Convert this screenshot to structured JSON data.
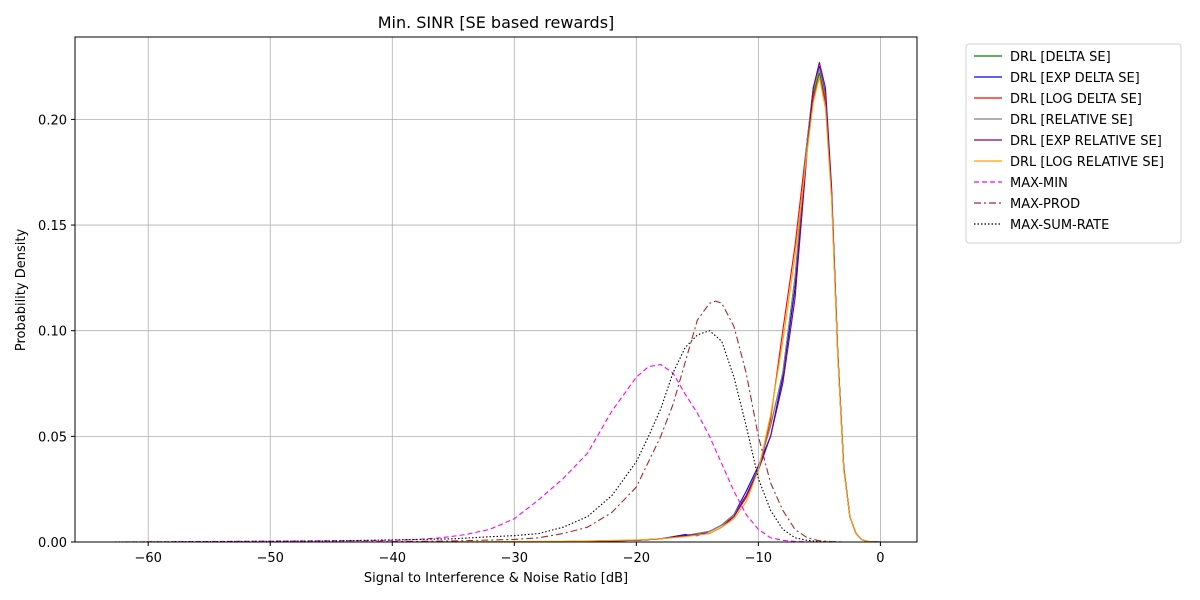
{
  "chart_data": {
    "type": "line",
    "title": "Min. SINR [SE based rewards]",
    "xlabel": "Signal to Interference & Noise Ratio [dB]",
    "ylabel": "Probability Density",
    "xlim": [
      -66,
      3
    ],
    "ylim": [
      0,
      0.239
    ],
    "xticks": [
      -60,
      -50,
      -40,
      -30,
      -20,
      -10,
      0
    ],
    "xtick_labels": [
      "−60",
      "−50",
      "−40",
      "−30",
      "−20",
      "−10",
      "0"
    ],
    "yticks": [
      0.0,
      0.05,
      0.1,
      0.15,
      0.2
    ],
    "ytick_labels": [
      "0.00",
      "0.05",
      "0.10",
      "0.15",
      "0.20"
    ],
    "grid": true,
    "legend_position": "outside-right-top",
    "series": [
      {
        "name": "DRL [DELTA SE]",
        "color": "#008000",
        "style": "solid",
        "x": [
          -40,
          -30,
          -25,
          -20,
          -18,
          -16,
          -14,
          -13,
          -12,
          -11,
          -10,
          -9,
          -8,
          -7,
          -6,
          -5.5,
          -5,
          -4.5,
          -4,
          -3.5,
          -3,
          -2.5,
          -2,
          -1.5,
          -1,
          0
        ],
        "y": [
          0,
          0,
          0.0003,
          0.0008,
          0.0015,
          0.003,
          0.005,
          0.008,
          0.013,
          0.022,
          0.035,
          0.055,
          0.08,
          0.125,
          0.19,
          0.212,
          0.222,
          0.21,
          0.165,
          0.09,
          0.035,
          0.012,
          0.004,
          0.001,
          0.0002,
          0
        ]
      },
      {
        "name": "DRL [EXP DELTA SE]",
        "color": "#0000ff",
        "style": "solid",
        "x": [
          -40,
          -30,
          -25,
          -20,
          -18,
          -16,
          -15,
          -14,
          -13,
          -12,
          -11,
          -10,
          -9,
          -8,
          -7,
          -6,
          -5.5,
          -5,
          -4.5,
          -4,
          -3.5,
          -3,
          -2.5,
          -2,
          -1.5,
          -1,
          0
        ],
        "y": [
          0,
          0,
          0.0003,
          0.0008,
          0.0015,
          0.0035,
          0.003,
          0.005,
          0.008,
          0.013,
          0.024,
          0.036,
          0.05,
          0.078,
          0.12,
          0.19,
          0.215,
          0.225,
          0.212,
          0.165,
          0.09,
          0.035,
          0.012,
          0.004,
          0.001,
          0.0002,
          0
        ]
      },
      {
        "name": "DRL [LOG DELTA SE]",
        "color": "#ff0000",
        "style": "solid",
        "x": [
          -40,
          -30,
          -25,
          -20,
          -18,
          -16,
          -14,
          -13,
          -12,
          -11,
          -10,
          -9,
          -8,
          -7,
          -6,
          -5.5,
          -5,
          -4.5,
          -4,
          -3.5,
          -3,
          -2.5,
          -2,
          -1.5,
          -1,
          0
        ],
        "y": [
          0,
          0,
          0.0003,
          0.0008,
          0.0015,
          0.003,
          0.005,
          0.008,
          0.012,
          0.021,
          0.034,
          0.058,
          0.1,
          0.14,
          0.19,
          0.21,
          0.22,
          0.208,
          0.165,
          0.09,
          0.035,
          0.012,
          0.004,
          0.001,
          0.0002,
          0
        ]
      },
      {
        "name": "DRL [RELATIVE SE]",
        "color": "#808080",
        "style": "solid",
        "x": [
          -40,
          -30,
          -25,
          -20,
          -18,
          -16,
          -14,
          -13,
          -12,
          -11,
          -10,
          -9,
          -8,
          -7,
          -6,
          -5.5,
          -5,
          -4.5,
          -4,
          -3.5,
          -3,
          -2.5,
          -2,
          -1.5,
          -1,
          0
        ],
        "y": [
          0,
          0,
          0.0003,
          0.0008,
          0.0015,
          0.003,
          0.005,
          0.008,
          0.013,
          0.022,
          0.035,
          0.055,
          0.08,
          0.125,
          0.19,
          0.214,
          0.224,
          0.211,
          0.165,
          0.09,
          0.035,
          0.012,
          0.004,
          0.001,
          0.0002,
          0
        ]
      },
      {
        "name": "DRL [EXP RELATIVE SE]",
        "color": "#800080",
        "style": "solid",
        "x": [
          -40,
          -30,
          -25,
          -20,
          -18,
          -16,
          -15,
          -14,
          -13,
          -12,
          -11,
          -10,
          -9,
          -8,
          -7,
          -6,
          -5.5,
          -5,
          -4.5,
          -4,
          -3.5,
          -3,
          -2.5,
          -2,
          -1.5,
          -1,
          0
        ],
        "y": [
          0,
          0,
          0.0003,
          0.0008,
          0.0015,
          0.003,
          0.0035,
          0.004,
          0.007,
          0.012,
          0.022,
          0.034,
          0.05,
          0.075,
          0.115,
          0.185,
          0.215,
          0.227,
          0.215,
          0.168,
          0.09,
          0.035,
          0.012,
          0.004,
          0.001,
          0.0002,
          0
        ]
      },
      {
        "name": "DRL [LOG RELATIVE SE]",
        "color": "#ffa500",
        "style": "solid",
        "x": [
          -40,
          -30,
          -25,
          -20,
          -18,
          -16,
          -14,
          -13,
          -12,
          -11,
          -10,
          -9,
          -8,
          -7,
          -6,
          -5.5,
          -5,
          -4.5,
          -4,
          -3.5,
          -3,
          -2.5,
          -2,
          -1.5,
          -1,
          0
        ],
        "y": [
          0,
          0.0002,
          0.0004,
          0.001,
          0.0015,
          0.0025,
          0.004,
          0.007,
          0.011,
          0.019,
          0.034,
          0.06,
          0.095,
          0.135,
          0.185,
          0.208,
          0.22,
          0.205,
          0.162,
          0.088,
          0.034,
          0.012,
          0.004,
          0.001,
          0.0002,
          0
        ]
      },
      {
        "name": "MAX-MIN",
        "color": "#ff00ff",
        "style": "dashed",
        "x": [
          -62,
          -56,
          -50,
          -45,
          -40,
          -38,
          -36,
          -34,
          -32,
          -30,
          -28,
          -26,
          -24,
          -22,
          -20,
          -19,
          -18,
          -17,
          -16,
          -15,
          -14,
          -13,
          -12,
          -11,
          -10,
          -9,
          -8,
          -7,
          -6,
          -5,
          -4
        ],
        "y": [
          0,
          0.0002,
          0.0004,
          0.0006,
          0.0008,
          0.0012,
          0.002,
          0.0035,
          0.006,
          0.011,
          0.02,
          0.03,
          0.042,
          0.062,
          0.078,
          0.083,
          0.084,
          0.08,
          0.07,
          0.061,
          0.05,
          0.037,
          0.024,
          0.013,
          0.006,
          0.002,
          0.0008,
          0.0003,
          0.0001,
          0,
          0
        ]
      },
      {
        "name": "MAX-PROD",
        "color": "#a52a2a",
        "style": "dashdot",
        "x": [
          -45,
          -40,
          -35,
          -30,
          -28,
          -26,
          -24,
          -22,
          -20,
          -19,
          -18,
          -17,
          -16,
          -15,
          -14,
          -13.5,
          -13,
          -12,
          -11,
          -10,
          -9,
          -8,
          -7,
          -6,
          -5,
          -4,
          -3
        ],
        "y": [
          0,
          0.0002,
          0.0005,
          0.0012,
          0.002,
          0.004,
          0.007,
          0.014,
          0.026,
          0.038,
          0.05,
          0.065,
          0.085,
          0.105,
          0.113,
          0.114,
          0.113,
          0.102,
          0.08,
          0.05,
          0.028,
          0.015,
          0.006,
          0.002,
          0.0006,
          0.0002,
          0
        ]
      },
      {
        "name": "MAX-SUM-RATE",
        "color": "#000000",
        "style": "dotted",
        "x": [
          -63,
          -55,
          -45,
          -40,
          -35,
          -32,
          -30,
          -28,
          -26,
          -24,
          -22,
          -20,
          -19,
          -18,
          -17,
          -16,
          -15,
          -14,
          -13,
          -12,
          -11,
          -10,
          -9,
          -8,
          -7,
          -6,
          -5,
          -4,
          -3
        ],
        "y": [
          0,
          0.0002,
          0.0005,
          0.001,
          0.0015,
          0.0025,
          0.003,
          0.004,
          0.007,
          0.012,
          0.022,
          0.038,
          0.05,
          0.063,
          0.08,
          0.092,
          0.098,
          0.1,
          0.095,
          0.078,
          0.055,
          0.03,
          0.015,
          0.006,
          0.002,
          0.0008,
          0.0002,
          0,
          0
        ]
      }
    ]
  }
}
